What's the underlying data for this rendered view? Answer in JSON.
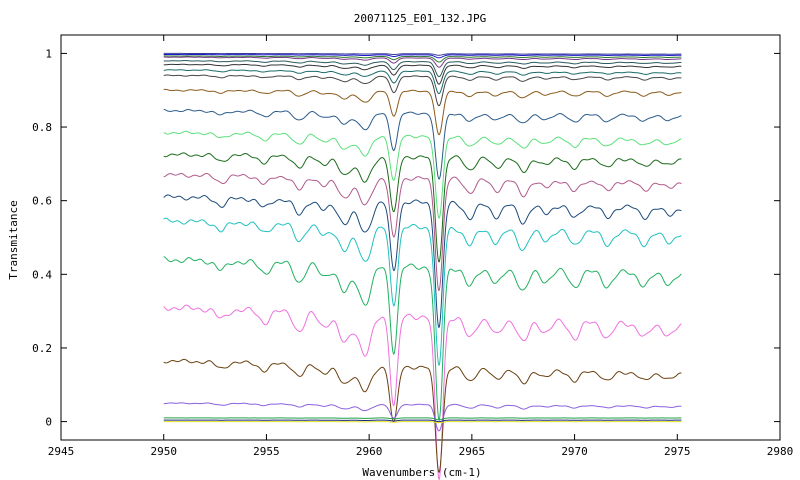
{
  "chart_data": {
    "type": "line",
    "title": "20071125_E01_132.JPG",
    "xlabel": "Wavenumbers (cm-1)",
    "ylabel": "Transmitance",
    "xlim": [
      2945,
      2980
    ],
    "ylim": [
      -0.05,
      1.05
    ],
    "x_ticks": [
      2945,
      2950,
      2955,
      2960,
      2965,
      2970,
      2975,
      2980
    ],
    "y_ticks": [
      0,
      0.2,
      0.4,
      0.6,
      0.8,
      1
    ],
    "x_range": [
      2950,
      2975.2
    ],
    "grid": false,
    "legend": "none",
    "dips": [
      {
        "x": 2952.8,
        "w": 0.25,
        "d": 0.06
      },
      {
        "x": 2954.9,
        "w": 0.25,
        "d": 0.07
      },
      {
        "x": 2956.6,
        "w": 0.25,
        "d": 0.12
      },
      {
        "x": 2957.8,
        "w": 0.25,
        "d": 0.08
      },
      {
        "x": 2958.8,
        "w": 0.3,
        "d": 0.18
      },
      {
        "x": 2959.8,
        "w": 0.3,
        "d": 0.25
      },
      {
        "x": 2961.2,
        "w": 0.18,
        "d": 0.55
      },
      {
        "x": 2963.4,
        "w": 0.18,
        "d": 1.0
      },
      {
        "x": 2964.9,
        "w": 0.25,
        "d": 0.12
      },
      {
        "x": 2966.2,
        "w": 0.25,
        "d": 0.1
      },
      {
        "x": 2967.5,
        "w": 0.25,
        "d": 0.14
      },
      {
        "x": 2968.6,
        "w": 0.25,
        "d": 0.07
      },
      {
        "x": 2970.0,
        "w": 0.25,
        "d": 0.1
      },
      {
        "x": 2971.6,
        "w": 0.25,
        "d": 0.09
      },
      {
        "x": 2973.4,
        "w": 0.25,
        "d": 0.08
      },
      {
        "x": 2974.6,
        "w": 0.25,
        "d": 0.06
      }
    ],
    "series": [
      {
        "color": "#3a3a9a",
        "start": 1.0,
        "end": 0.998,
        "scale": 0.004
      },
      {
        "color": "#1a1acc",
        "start": 0.997,
        "end": 0.995,
        "scale": 0.008
      },
      {
        "color": "#2e7a2e",
        "start": 0.993,
        "end": 0.99,
        "scale": 0.015
      },
      {
        "color": "#7a3a8a",
        "start": 0.99,
        "end": 0.985,
        "scale": 0.025
      },
      {
        "color": "#2a5a5a",
        "start": 0.98,
        "end": 0.975,
        "scale": 0.04
      },
      {
        "color": "#333333",
        "start": 0.97,
        "end": 0.965,
        "scale": 0.05
      },
      {
        "color": "#1a6a6a",
        "start": 0.955,
        "end": 0.948,
        "scale": 0.06
      },
      {
        "color": "#444444",
        "start": 0.94,
        "end": 0.935,
        "scale": 0.08
      },
      {
        "color": "#8a5a1a",
        "start": 0.9,
        "end": 0.895,
        "scale": 0.12
      },
      {
        "color": "#2a5a8a",
        "start": 0.845,
        "end": 0.83,
        "scale": 0.18
      },
      {
        "color": "#5ae07a",
        "start": 0.785,
        "end": 0.765,
        "scale": 0.22
      },
      {
        "color": "#1a6a1a",
        "start": 0.725,
        "end": 0.712,
        "scale": 0.28
      },
      {
        "color": "#b05a8a",
        "start": 0.67,
        "end": 0.65,
        "scale": 0.3
      },
      {
        "color": "#1a4a7a",
        "start": 0.61,
        "end": 0.58,
        "scale": 0.34
      },
      {
        "color": "#20c0c0",
        "start": 0.545,
        "end": 0.51,
        "scale": 0.38
      },
      {
        "color": "#20b060",
        "start": 0.44,
        "end": 0.4,
        "scale": 0.42
      },
      {
        "color": "#f070e0",
        "start": 0.31,
        "end": 0.26,
        "scale": 0.44
      },
      {
        "color": "#6a4010",
        "start": 0.165,
        "end": 0.13,
        "scale": 0.28
      },
      {
        "color": "#8a60e0",
        "start": 0.05,
        "end": 0.042,
        "scale": 0.07
      },
      {
        "color": "#20a040",
        "start": 0.01,
        "end": 0.01,
        "scale": 0.005
      },
      {
        "color": "#1a2a7a",
        "start": 0.004,
        "end": 0.004,
        "scale": 0.004
      },
      {
        "color": "#e0e020",
        "start": 0.0,
        "end": 0.0,
        "scale": 0.003
      }
    ]
  }
}
